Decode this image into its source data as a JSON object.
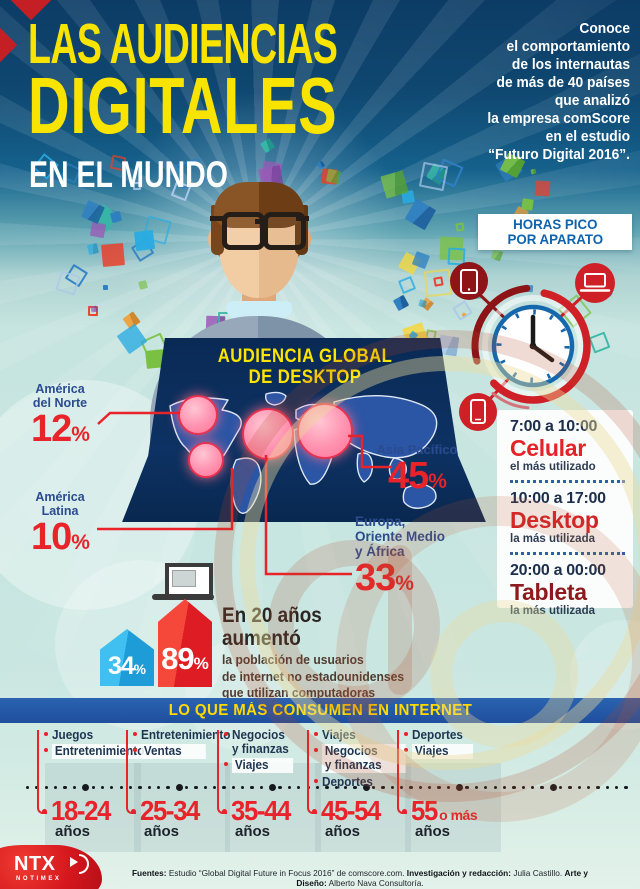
{
  "header": {
    "title_line1": "LAS AUDIENCIAS",
    "title_line2": "DIGITALES",
    "subtitle": "EN EL MUNDO",
    "intro": "Conoce\nel comportamiento\nde los internautas\nde más de 40 países\nque analizó\nla empresa comScore\nen el estudio\n“Futuro Digital 2016”."
  },
  "desktop_audience": {
    "title": "AUDIENCIA GLOBAL\nDE DESKTOP",
    "regions": [
      {
        "name": "América\ndel Norte",
        "value": "12",
        "unit": "%"
      },
      {
        "name": "América\nLatina",
        "value": "10",
        "unit": "%"
      },
      {
        "name": "Asia Pacífico",
        "value": "45",
        "unit": "%"
      },
      {
        "name": "Europa,\nOriente Medio\ny África",
        "value": "33",
        "unit": "%"
      }
    ]
  },
  "peak_hours": {
    "title": "HORAS PICO\nPOR APARATO",
    "slots": [
      {
        "time": "7:00 a 10:00",
        "device": "Celular",
        "note": "el más utilizado"
      },
      {
        "time": "10:00 a 17:00",
        "device": "Desktop",
        "note": "la más utilizada"
      },
      {
        "time": "20:00 a 00:00",
        "device": "Tableta",
        "note": "la más utilizada"
      }
    ]
  },
  "growth": {
    "heading": "En 20 años\naumentó",
    "body": "la población de usuarios\nde internet no estadounidenses\nque utilizan computadoras\nde escritorio (desktop)",
    "values": [
      {
        "value": "34",
        "unit": "%"
      },
      {
        "value": "89",
        "unit": "%"
      }
    ]
  },
  "consumption": {
    "banner": "LO QUE MÁS CONSUMEN EN INTERNET",
    "columns": [
      {
        "age": "18-24",
        "age_suffix": "años",
        "items": [
          {
            "label": "Juegos"
          },
          {
            "label": "Entretenimiento"
          }
        ]
      },
      {
        "age": "25-34",
        "age_suffix": "años",
        "items": [
          {
            "label": "Entretenimiento"
          },
          {
            "label": "Ventas"
          }
        ]
      },
      {
        "age": "35-44",
        "age_suffix": "años",
        "items": [
          {
            "label": "Negocios\ny finanzas"
          },
          {
            "label": "Viajes"
          }
        ]
      },
      {
        "age": "45-54",
        "age_suffix": "años",
        "items": [
          {
            "label": "Viajes"
          },
          {
            "label": "Negocios\ny finanzas"
          },
          {
            "label": "Deportes"
          }
        ]
      },
      {
        "age": "55",
        "age_extra": "o más",
        "age_suffix": "años",
        "items": [
          {
            "label": "Deportes"
          },
          {
            "label": "Viajes"
          }
        ]
      }
    ]
  },
  "footer": {
    "sources_label": "Fuentes:",
    "sources": " Estudio “Global Digital Future in Focus 2016” de comscore.com.  ",
    "research_label": "Investigación y redacción:",
    "research": " Julia Castillo.  ",
    "design_label": "Arte y Diseño:",
    "design": " Alberto Nava Consultoría.",
    "logo_text": "NTX",
    "logo_subtext": "NOTIMEX"
  },
  "colors": {
    "accent_red": "#e8232a",
    "dark_red": "#8e1417",
    "accent_blue": "#29a8e0",
    "label_blue": "#2a4b8f",
    "banner_blue": "#2257a5",
    "title_yellow": "#f8e400"
  },
  "decor": {
    "confetti_colors": [
      [
        "#f29b30",
        "#cf7d17"
      ],
      [
        "#7ac143",
        "#57a32b"
      ],
      [
        "#e8412c",
        "#c22a1d"
      ],
      [
        "#2e7fc2",
        "#1c5f9e"
      ],
      [
        "#29abe2",
        "#1b8cc0"
      ],
      [
        "#37b6a7",
        "#22968a"
      ],
      [
        "#f5d63d",
        "#d9b51e"
      ],
      [
        "#9b59b6",
        "#7d3f9b"
      ],
      [
        "#aac8e8",
        "#7fa8d0"
      ]
    ]
  }
}
